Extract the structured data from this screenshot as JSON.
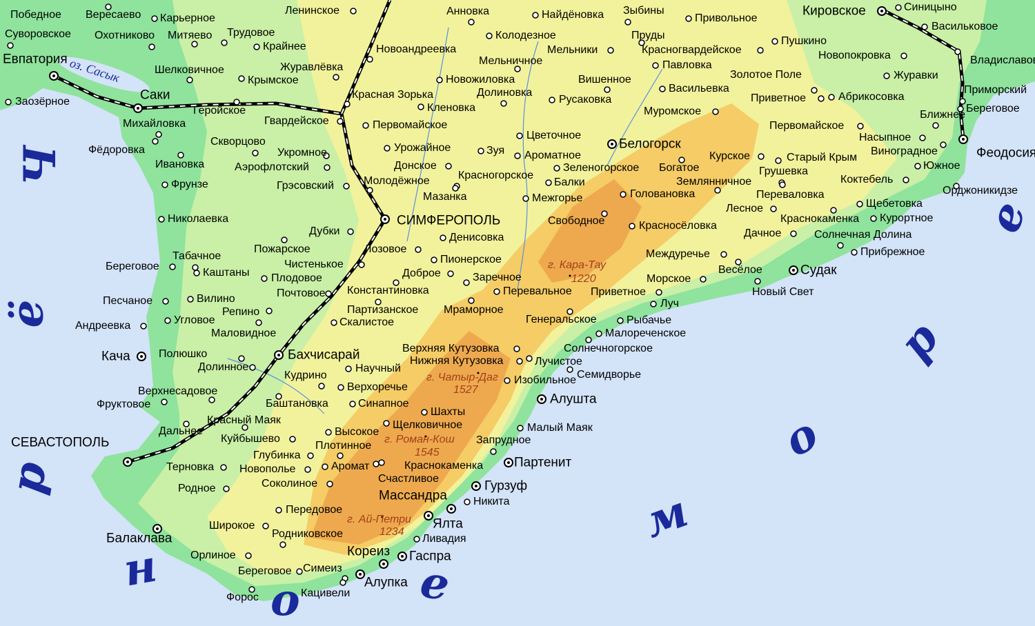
{
  "colors": {
    "sea": "#d3e3f8",
    "lowland": "#8fe39c",
    "plain": "#c9f0a6",
    "upland": "#f2f29c",
    "mountain": "#f5cc66",
    "peak": "#eea94e",
    "label_peak": "#a0401a",
    "label_sea": "#1a2a9a"
  },
  "sea": {
    "letters": [
      "Ч",
      "ё",
      "р",
      "н",
      "о",
      "е",
      "м",
      "о",
      "р",
      "е"
    ]
  },
  "lake": {
    "name": "оз. Сасык"
  },
  "peaks": [
    {
      "name": "г. Кара-Тау",
      "height": "1220"
    },
    {
      "name": "г. Чатыр-Даг",
      "height": "1527"
    },
    {
      "name": "г. Роман-Кош",
      "height": "1545"
    },
    {
      "name": "г. Ай-Петри",
      "height": "1234"
    }
  ],
  "places": [
    {
      "name": "Победное"
    },
    {
      "name": "Вересаево"
    },
    {
      "name": "Карьерное"
    },
    {
      "name": "Ленинское"
    },
    {
      "name": "Анновка"
    },
    {
      "name": "Найдёновка"
    },
    {
      "name": "Зыбины"
    },
    {
      "name": "Привольное"
    },
    {
      "name": "Кировское",
      "type": "city"
    },
    {
      "name": "Синицыно"
    },
    {
      "name": "Суворовское"
    },
    {
      "name": "Охотниково"
    },
    {
      "name": "Митяево"
    },
    {
      "name": "Трудовое"
    },
    {
      "name": "Крайнее"
    },
    {
      "name": "Колодезное"
    },
    {
      "name": "Пруды"
    },
    {
      "name": "Васильковое"
    },
    {
      "name": "Евпатория",
      "type": "city"
    },
    {
      "name": "Новоандреевка"
    },
    {
      "name": "Мельники"
    },
    {
      "name": "Красногвардейское"
    },
    {
      "name": "Пушкино"
    },
    {
      "name": "Мельничное"
    },
    {
      "name": "Павловка"
    },
    {
      "name": "Новопокровка"
    },
    {
      "name": "Владиславовка"
    },
    {
      "name": "Шелковичное"
    },
    {
      "name": "Журавлёвка"
    },
    {
      "name": "Крымское"
    },
    {
      "name": "Новожиловка"
    },
    {
      "name": "Вишенное"
    },
    {
      "name": "Золотое Поле"
    },
    {
      "name": "Журавки"
    },
    {
      "name": "Саки",
      "type": "city"
    },
    {
      "name": "Красная Зорька"
    },
    {
      "name": "Долиновка"
    },
    {
      "name": "Васильевка"
    },
    {
      "name": "Приморский"
    },
    {
      "name": "Заозёрное"
    },
    {
      "name": "Русаковка"
    },
    {
      "name": "Кленовка"
    },
    {
      "name": "Приветное"
    },
    {
      "name": "Абрикосовка"
    },
    {
      "name": "Михайловка"
    },
    {
      "name": "Геройское"
    },
    {
      "name": "Береговое"
    },
    {
      "name": "Гвардейское"
    },
    {
      "name": "Муромское"
    },
    {
      "name": "Ближнее"
    },
    {
      "name": "Первомайское"
    },
    {
      "name": "Первомайское"
    },
    {
      "name": "Насыпное"
    },
    {
      "name": "Цветочное"
    },
    {
      "name": "Фёдоровка"
    },
    {
      "name": "Скворцово"
    },
    {
      "name": "Белогорск",
      "type": "city"
    },
    {
      "name": "Феодосия",
      "type": "city"
    },
    {
      "name": "Виноградное"
    },
    {
      "name": "Урожайное"
    },
    {
      "name": "Зуя"
    },
    {
      "name": "Ароматное"
    },
    {
      "name": "Укромное"
    },
    {
      "name": "Старый Крым"
    },
    {
      "name": "Курское"
    },
    {
      "name": "Ивановка"
    },
    {
      "name": "Аэрофлотский"
    },
    {
      "name": "Донское"
    },
    {
      "name": "Зеленогорское"
    },
    {
      "name": "Богатое"
    },
    {
      "name": "Грушевка"
    },
    {
      "name": "Южное"
    },
    {
      "name": "Красногорское"
    },
    {
      "name": "Землянничное"
    },
    {
      "name": "Коктебель"
    },
    {
      "name": "Фрунзе"
    },
    {
      "name": "Молодёжное"
    },
    {
      "name": "Балки"
    },
    {
      "name": "Грэсовский"
    },
    {
      "name": "Головановка"
    },
    {
      "name": "Переваловка"
    },
    {
      "name": "Мазанка"
    },
    {
      "name": "Межгорье"
    },
    {
      "name": "Орджоникидзе"
    },
    {
      "name": "Щебетовка"
    },
    {
      "name": "Лесное"
    },
    {
      "name": "Николаевка"
    },
    {
      "name": "СИМФЕРОПОЛЬ",
      "type": "city"
    },
    {
      "name": "Свободное"
    },
    {
      "name": "Краснокаменка"
    },
    {
      "name": "Курортное"
    },
    {
      "name": "Красносёловка"
    },
    {
      "name": "Дубки"
    },
    {
      "name": "Денисовка"
    },
    {
      "name": "Дачное"
    },
    {
      "name": "Солнечная Долина"
    },
    {
      "name": "Пожарское"
    },
    {
      "name": "Лозовое"
    },
    {
      "name": "Междуречье"
    },
    {
      "name": "Прибрежное"
    },
    {
      "name": "Табачное"
    },
    {
      "name": "Пионерское"
    },
    {
      "name": "Чистенькое"
    },
    {
      "name": "Береговое"
    },
    {
      "name": "Каштаны"
    },
    {
      "name": "Весёлое"
    },
    {
      "name": "Судак",
      "type": "city"
    },
    {
      "name": "Доброе"
    },
    {
      "name": "Плодовое"
    },
    {
      "name": "Заречное"
    },
    {
      "name": "Морское"
    },
    {
      "name": "Константиновка"
    },
    {
      "name": "Перевальное"
    },
    {
      "name": "Приветное"
    },
    {
      "name": "Новый Свет"
    },
    {
      "name": "Почтовое"
    },
    {
      "name": "Песчаное"
    },
    {
      "name": "Вилино"
    },
    {
      "name": "Луч"
    },
    {
      "name": "Партизанское"
    },
    {
      "name": "Мраморное"
    },
    {
      "name": "Репино"
    },
    {
      "name": "Андреевка"
    },
    {
      "name": "Угловое"
    },
    {
      "name": "Генеральское"
    },
    {
      "name": "Рыбачье"
    },
    {
      "name": "Скалистое"
    },
    {
      "name": "Маловидное"
    },
    {
      "name": "Малореченское"
    },
    {
      "name": "Солнечногорское"
    },
    {
      "name": "Верхняя Кутузовка"
    },
    {
      "name": "Кача",
      "type": "city"
    },
    {
      "name": "Полюшко"
    },
    {
      "name": "Бахчисарай",
      "type": "city"
    },
    {
      "name": "Лучистое"
    },
    {
      "name": "Нижняя Кутузовка"
    },
    {
      "name": "Научный"
    },
    {
      "name": "Долинное"
    },
    {
      "name": "Семидворье"
    },
    {
      "name": "Кудрино"
    },
    {
      "name": "Изобильное"
    },
    {
      "name": "Верхоречье"
    },
    {
      "name": "Верхнесадовое"
    },
    {
      "name": "Алушта",
      "type": "city"
    },
    {
      "name": "Фруктовое"
    },
    {
      "name": "Баштановка"
    },
    {
      "name": "Синапное"
    },
    {
      "name": "Шахты"
    },
    {
      "name": "Красный Маяк"
    },
    {
      "name": "Щелковичное"
    },
    {
      "name": "Дальнее"
    },
    {
      "name": "Малый Маяк"
    },
    {
      "name": "Высокое"
    },
    {
      "name": "Куйбышево"
    },
    {
      "name": "Запрудное"
    },
    {
      "name": "СЕВАСТОПОЛЬ",
      "type": "city"
    },
    {
      "name": "Плотинное"
    },
    {
      "name": "Глубинка"
    },
    {
      "name": "Партенит",
      "type": "city"
    },
    {
      "name": "Краснокаменка"
    },
    {
      "name": "Терновка"
    },
    {
      "name": "Новополье"
    },
    {
      "name": "Аромат"
    },
    {
      "name": "Счастливое"
    },
    {
      "name": "Соколиное"
    },
    {
      "name": "Гурзуф",
      "type": "city"
    },
    {
      "name": "Родное"
    },
    {
      "name": "Массандра",
      "type": "city"
    },
    {
      "name": "Никита"
    },
    {
      "name": "Передовое"
    },
    {
      "name": "Ялта",
      "type": "city"
    },
    {
      "name": "Широкое"
    },
    {
      "name": "Родниковское"
    },
    {
      "name": "Ливадия"
    },
    {
      "name": "Балаклава",
      "type": "city"
    },
    {
      "name": "Кореиз",
      "type": "city"
    },
    {
      "name": "Гаспра",
      "type": "city"
    },
    {
      "name": "Орлиное"
    },
    {
      "name": "Береговое"
    },
    {
      "name": "Симеиз"
    },
    {
      "name": "Алупка",
      "type": "city"
    },
    {
      "name": "Кацивели"
    },
    {
      "name": "Форос"
    }
  ]
}
